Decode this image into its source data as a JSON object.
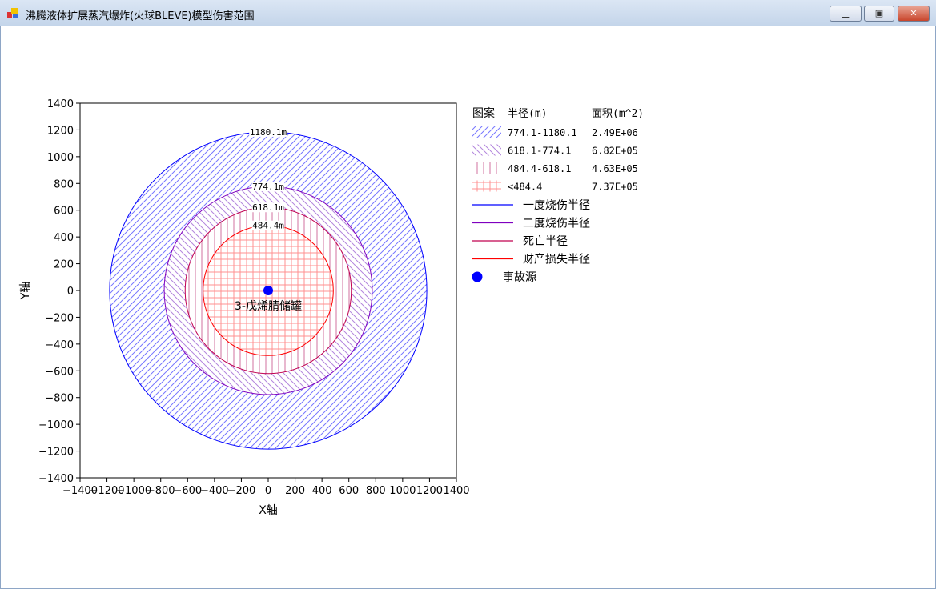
{
  "window": {
    "title": "沸腾液体扩展蒸汽爆炸(火球BLEVE)模型伤害范围",
    "minimize_icon": "minimize-icon",
    "maximize_icon": "maximize-icon",
    "close_icon": "close-icon"
  },
  "chart_data": {
    "type": "scatter",
    "xlabel": "X轴",
    "ylabel": "Y轴",
    "xlim": [
      -1400,
      1400
    ],
    "ylim": [
      -1400,
      1400
    ],
    "xticks": [
      -1400,
      -1200,
      -1000,
      -800,
      -600,
      -400,
      -200,
      0,
      200,
      400,
      600,
      800,
      1000,
      1200,
      1400
    ],
    "yticks": [
      1400,
      1200,
      1000,
      800,
      600,
      400,
      200,
      0,
      -200,
      -400,
      -600,
      -800,
      -1000,
      -1200,
      -1400
    ],
    "grid": false,
    "legend_placement": "right",
    "source": {
      "x": 0,
      "y": 0,
      "label": "3-戊烯腈储罐",
      "color": "#0000ff"
    },
    "circles": [
      {
        "radius": 1180.1,
        "label": "1180.1m",
        "color": "#0000ff",
        "hatch": "forward-diagonal",
        "hatch_color": "#7777ff"
      },
      {
        "radius": 774.1,
        "label": "774.1m",
        "color": "#7f00bf",
        "hatch": "backward-diagonal",
        "hatch_color": "#b385dd"
      },
      {
        "radius": 618.1,
        "label": "618.1m",
        "color": "#c0004f",
        "hatch": "vertical",
        "hatch_color": "#d0709f"
      },
      {
        "radius": 484.4,
        "label": "484.4m",
        "color": "#ff0000",
        "hatch": "cross",
        "hatch_color": "#ff9090"
      }
    ]
  },
  "legend": {
    "headers": {
      "pattern": "图案",
      "radius": "半径(m)",
      "area": "面积(m^2)"
    },
    "patterns": [
      {
        "range": "774.1-1180.1",
        "area": "2.49E+06"
      },
      {
        "range": "618.1-774.1",
        "area": "6.82E+05"
      },
      {
        "range": "484.4-618.1",
        "area": "4.63E+05"
      },
      {
        "range": "<484.4",
        "area": "7.37E+05"
      }
    ],
    "lines": [
      {
        "label": "一度烧伤半径",
        "color": "#0000ff"
      },
      {
        "label": "二度烧伤半径",
        "color": "#7f00bf"
      },
      {
        "label": "死亡半径",
        "color": "#c0004f"
      },
      {
        "label": "财产损失半径",
        "color": "#ff0000"
      }
    ],
    "source_label": "事故源"
  }
}
